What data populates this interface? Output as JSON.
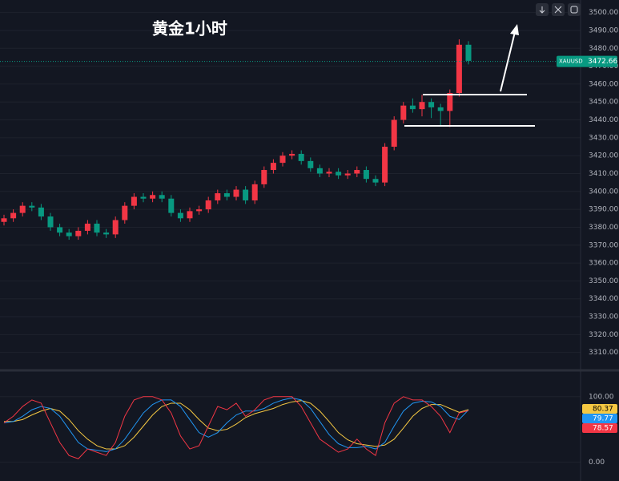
{
  "chart_data": [
    {
      "type": "candlestick",
      "title": "黄金1小时",
      "symbol": "XAUUSD",
      "last_price": 3472.66,
      "up_color": "#f23645",
      "down_color": "#089981",
      "grid": true,
      "open": [
        3383,
        3385,
        3388,
        3392,
        3391,
        3386,
        3380,
        3377,
        3375,
        3378,
        3382,
        3377,
        3376,
        3384,
        3392,
        3397,
        3396,
        3398,
        3396,
        3388,
        3385,
        3389,
        3390,
        3395,
        3399,
        3397,
        3401,
        3395,
        3404,
        3412,
        3416,
        3420,
        3421,
        3417,
        3413,
        3410,
        3411,
        3409,
        3410,
        3412,
        3407,
        3405,
        3425,
        3440,
        3448,
        3446,
        3450,
        3447,
        3445,
        3455,
        3482
      ],
      "high": [
        3387,
        3390,
        3394,
        3394,
        3393,
        3388,
        3382,
        3379,
        3380,
        3384,
        3384,
        3379,
        3386,
        3394,
        3399,
        3399,
        3400,
        3400,
        3398,
        3390,
        3391,
        3392,
        3397,
        3401,
        3401,
        3403,
        3403,
        3406,
        3414,
        3418,
        3422,
        3423,
        3423,
        3419,
        3415,
        3413,
        3413,
        3412,
        3414,
        3414,
        3409,
        3427,
        3442,
        3450,
        3452,
        3454,
        3452,
        3449,
        3457,
        3485,
        3484
      ],
      "low": [
        3381,
        3383,
        3386,
        3389,
        3384,
        3378,
        3375,
        3373,
        3373,
        3376,
        3375,
        3374,
        3374,
        3382,
        3390,
        3394,
        3394,
        3394,
        3386,
        3383,
        3383,
        3387,
        3388,
        3393,
        3395,
        3395,
        3393,
        3393,
        3402,
        3410,
        3414,
        3418,
        3415,
        3411,
        3408,
        3408,
        3407,
        3407,
        3408,
        3405,
        3403,
        3403,
        3423,
        3438,
        3444,
        3442,
        3441,
        3437,
        3436,
        3453,
        3471
      ],
      "close": [
        3385,
        3388,
        3392,
        3391,
        3386,
        3380,
        3377,
        3375,
        3378,
        3382,
        3377,
        3376,
        3384,
        3392,
        3397,
        3396,
        3398,
        3396,
        3388,
        3385,
        3389,
        3390,
        3395,
        3399,
        3397,
        3401,
        3395,
        3404,
        3412,
        3416,
        3420,
        3421,
        3417,
        3413,
        3410,
        3411,
        3409,
        3410,
        3412,
        3407,
        3405,
        3425,
        3440,
        3448,
        3446,
        3450,
        3447,
        3445,
        3455,
        3482,
        3473
      ],
      "ylim": [
        3300,
        3507
      ],
      "yticks": [
        {
          "value": 3310,
          "label": "3310.00"
        },
        {
          "value": 3320,
          "label": "3320.00"
        },
        {
          "value": 3330,
          "label": "3330.00"
        },
        {
          "value": 3340,
          "label": "3340.00"
        },
        {
          "value": 3350,
          "label": "3350.00"
        },
        {
          "value": 3360,
          "label": "3360.00"
        },
        {
          "value": 3370,
          "label": "3370.00"
        },
        {
          "value": 3380,
          "label": "3380.00"
        },
        {
          "value": 3390,
          "label": "3390.00"
        },
        {
          "value": 3400,
          "label": "3400.00"
        },
        {
          "value": 3410,
          "label": "3410.00"
        },
        {
          "value": 3420,
          "label": "3420.00"
        },
        {
          "value": 3430,
          "label": "3430.00"
        },
        {
          "value": 3440,
          "label": "3440.00"
        },
        {
          "value": 3450,
          "label": "3450.00"
        },
        {
          "value": 3460,
          "label": "3460.00"
        },
        {
          "value": 3470,
          "label": "3470.00"
        },
        {
          "value": 3480,
          "label": "3480.00"
        },
        {
          "value": 3490,
          "label": "3490.00"
        },
        {
          "value": 3500,
          "label": "3500.00"
        }
      ]
    },
    {
      "type": "line",
      "ylim": [
        -29,
        139
      ],
      "yticks": [
        {
          "value": 0,
          "label": "0.00"
        },
        {
          "value": 100,
          "label": "100.00"
        }
      ],
      "series": [
        {
          "color": "#f5c842",
          "values": [
            62,
            62,
            65,
            72,
            78,
            82,
            78,
            65,
            48,
            35,
            25,
            20,
            20,
            25,
            38,
            55,
            72,
            85,
            90,
            90,
            80,
            65,
            52,
            48,
            50,
            58,
            68,
            74,
            78,
            82,
            88,
            92,
            94,
            90,
            78,
            62,
            45,
            34,
            28,
            26,
            24,
            26,
            35,
            52,
            70,
            82,
            88,
            88,
            82,
            76,
            80.37
          ]
        },
        {
          "color": "#2196f3",
          "values": [
            60,
            62,
            70,
            80,
            85,
            82,
            70,
            50,
            30,
            20,
            18,
            16,
            20,
            35,
            55,
            75,
            88,
            95,
            95,
            85,
            65,
            45,
            38,
            45,
            60,
            72,
            78,
            78,
            82,
            90,
            95,
            98,
            95,
            82,
            62,
            42,
            28,
            22,
            22,
            24,
            20,
            30,
            55,
            78,
            90,
            93,
            92,
            85,
            70,
            65,
            79.77
          ]
        },
        {
          "color": "#f23645",
          "values": [
            60,
            70,
            85,
            95,
            90,
            60,
            30,
            10,
            5,
            20,
            15,
            10,
            30,
            70,
            95,
            100,
            100,
            95,
            75,
            40,
            20,
            25,
            55,
            85,
            80,
            90,
            70,
            80,
            95,
            100,
            100,
            100,
            85,
            60,
            35,
            25,
            15,
            20,
            35,
            20,
            10,
            60,
            90,
            100,
            95,
            95,
            85,
            70,
            45,
            75,
            78.57
          ]
        }
      ]
    }
  ]
}
